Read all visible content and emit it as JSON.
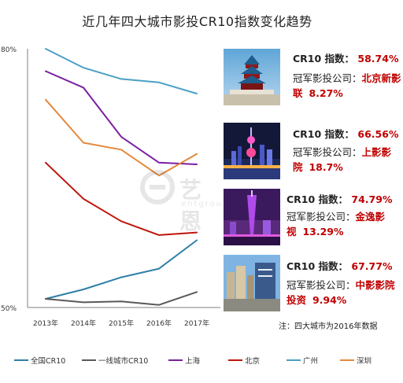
{
  "chart_data": {
    "type": "line",
    "title": "近几年四大城市影投CR10指数变化趋势",
    "x": [
      "2013年",
      "2014年",
      "2015年",
      "2016年",
      "2017年"
    ],
    "y_tick_labels": [
      "80%",
      "50%"
    ],
    "ylim": [
      50,
      80
    ],
    "series": [
      {
        "name": "全国CR10",
        "color": "#2e7fa6",
        "values": [
          51.0,
          52.1,
          53.5,
          54.5,
          57.8
        ]
      },
      {
        "name": "一线城市CR10",
        "color": "#595959",
        "values": [
          51.0,
          50.6,
          50.7,
          50.3,
          51.8
        ]
      },
      {
        "name": "上海",
        "color": "#7a1fa2",
        "values": [
          77.4,
          75.5,
          69.8,
          66.8,
          66.6
        ]
      },
      {
        "name": "北京",
        "color": "#c0140c",
        "values": [
          66.8,
          62.6,
          60.0,
          58.4,
          58.7
        ]
      },
      {
        "name": "广州",
        "color": "#4aa0c4",
        "values": [
          80.0,
          77.8,
          76.5,
          76.1,
          74.8
        ]
      },
      {
        "name": "深圳",
        "color": "#e3893c",
        "values": [
          74.1,
          69.1,
          68.3,
          65.3,
          67.8
        ]
      }
    ],
    "grid": false,
    "legend_position": "bottom"
  },
  "cards": [
    {
      "photo": "temple-of-heaven",
      "cr10_label": "CR10 指数：",
      "cr10_value": "58.74%",
      "company_label": "冠军影投公司：",
      "company_name": "北京新影联",
      "company_pct": "8.27%"
    },
    {
      "photo": "shanghai-pearl-tower",
      "cr10_label": "CR10 指数：",
      "cr10_value": "66.56%",
      "company_label": "冠军影投公司：",
      "company_name": "上影影院",
      "company_pct": "18.7%"
    },
    {
      "photo": "canton-tower",
      "cr10_label": "CR10 指数：",
      "cr10_value": "74.79%",
      "company_label": "冠军影投公司：",
      "company_name": "金逸影视",
      "company_pct": "13.29%"
    },
    {
      "photo": "shenzhen-skyline",
      "cr10_label": "CR10 指数：",
      "cr10_value": "67.77%",
      "company_label": "冠军影投公司：",
      "company_name": "中影影院投资",
      "company_pct": "9.94%"
    }
  ],
  "note": "注：四大城市为2016年数据",
  "watermark": {
    "text": "艺恩",
    "sub": "entgroup"
  }
}
